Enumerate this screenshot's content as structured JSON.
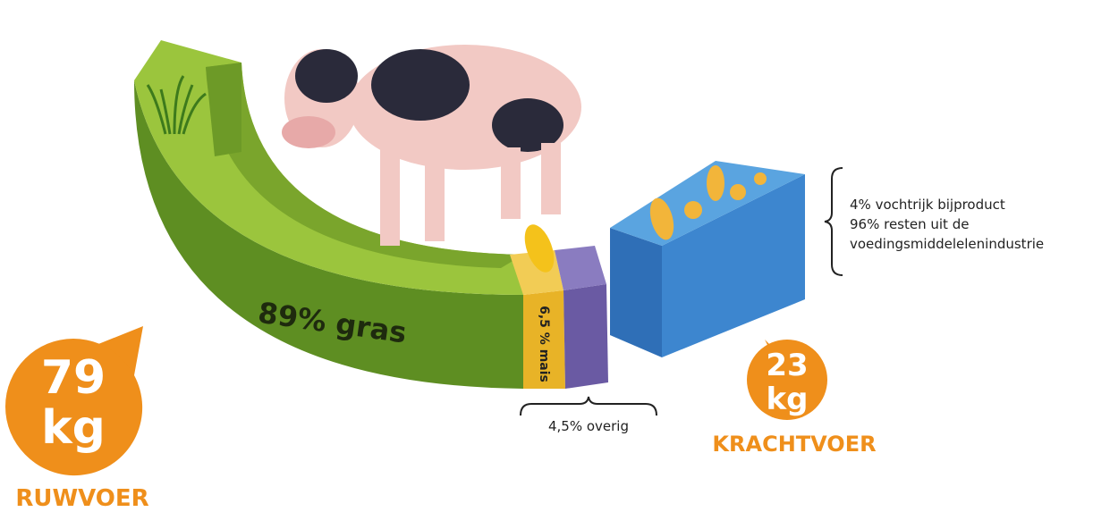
{
  "ruwvoer": {
    "amount": "79",
    "unit": "kg",
    "label": "RUWVOER",
    "segments": [
      {
        "label": "89% gras"
      },
      {
        "label": "6,5 % mais"
      },
      {
        "label": "4,5% overig"
      }
    ]
  },
  "krachtvoer": {
    "amount": "23",
    "unit": "kg",
    "label": "KRACHTVOER",
    "notes": [
      "4% vochtrijk bijproduct",
      "96% resten uit de",
      "voedingsmiddelelenindustrie"
    ]
  }
}
